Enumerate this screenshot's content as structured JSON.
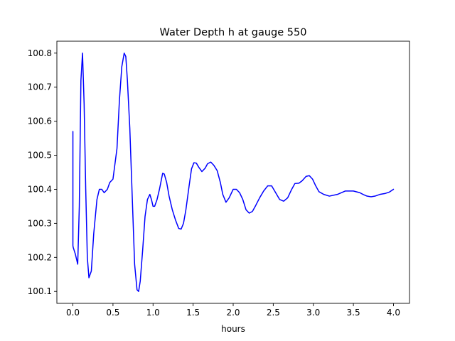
{
  "chart_data": {
    "type": "line",
    "title": "Water Depth h at gauge 550",
    "xlabel": "hours",
    "ylabel": "",
    "xlim": [
      -0.2,
      4.2
    ],
    "ylim": [
      100.065,
      100.835
    ],
    "xticks": [
      0.0,
      0.5,
      1.0,
      1.5,
      2.0,
      2.5,
      3.0,
      3.5,
      4.0
    ],
    "xtick_labels": [
      "0.0",
      "0.5",
      "1.0",
      "1.5",
      "2.0",
      "2.5",
      "3.0",
      "3.5",
      "4.0"
    ],
    "yticks": [
      100.1,
      100.2,
      100.3,
      100.4,
      100.5,
      100.6,
      100.7,
      100.8
    ],
    "ytick_labels": [
      "100.1",
      "100.2",
      "100.3",
      "100.4",
      "100.5",
      "100.6",
      "100.7",
      "100.8"
    ],
    "grid": false,
    "legend": "none",
    "series": [
      {
        "color": "#0000ff",
        "x": [
          0.0,
          0.0,
          0.003,
          0.03,
          0.06,
          0.08,
          0.1,
          0.12,
          0.14,
          0.16,
          0.18,
          0.2,
          0.23,
          0.26,
          0.3,
          0.33,
          0.36,
          0.39,
          0.43,
          0.46,
          0.5,
          0.55,
          0.58,
          0.61,
          0.64,
          0.66,
          0.68,
          0.71,
          0.74,
          0.77,
          0.8,
          0.82,
          0.84,
          0.87,
          0.9,
          0.93,
          0.96,
          0.98,
          1.0,
          1.02,
          1.05,
          1.08,
          1.12,
          1.14,
          1.17,
          1.2,
          1.24,
          1.28,
          1.32,
          1.35,
          1.38,
          1.41,
          1.45,
          1.48,
          1.51,
          1.54,
          1.57,
          1.61,
          1.65,
          1.68,
          1.72,
          1.76,
          1.8,
          1.84,
          1.87,
          1.91,
          1.95,
          2.0,
          2.04,
          2.08,
          2.12,
          2.16,
          2.2,
          2.24,
          2.28,
          2.33,
          2.38,
          2.43,
          2.48,
          2.53,
          2.58,
          2.63,
          2.68,
          2.73,
          2.77,
          2.82,
          2.86,
          2.91,
          2.95,
          2.99,
          3.03,
          3.07,
          3.13,
          3.2,
          3.3,
          3.4,
          3.5,
          3.58,
          3.62,
          3.67,
          3.72,
          3.77,
          3.83,
          3.9,
          3.95,
          4.0
        ],
        "y": [
          100.57,
          100.235,
          100.23,
          100.21,
          100.18,
          100.35,
          100.72,
          100.8,
          100.65,
          100.4,
          100.2,
          100.14,
          100.16,
          100.27,
          100.37,
          100.4,
          100.4,
          100.39,
          100.4,
          100.42,
          100.43,
          100.52,
          100.66,
          100.76,
          100.8,
          100.79,
          100.72,
          100.58,
          100.38,
          100.18,
          100.105,
          100.1,
          100.13,
          100.22,
          100.32,
          100.37,
          100.385,
          100.37,
          100.35,
          100.35,
          100.37,
          100.4,
          100.447,
          100.445,
          100.42,
          100.38,
          100.34,
          100.31,
          100.285,
          100.283,
          100.3,
          100.34,
          100.41,
          100.46,
          100.478,
          100.477,
          100.465,
          100.452,
          100.462,
          100.475,
          100.48,
          100.47,
          100.455,
          100.42,
          100.385,
          100.362,
          100.375,
          100.4,
          100.4,
          100.39,
          100.37,
          100.34,
          100.33,
          100.335,
          100.352,
          100.375,
          100.395,
          100.41,
          100.41,
          100.39,
          100.37,
          100.365,
          100.375,
          100.4,
          100.417,
          100.418,
          100.425,
          100.438,
          100.44,
          100.43,
          100.41,
          100.393,
          100.385,
          100.38,
          100.385,
          100.395,
          100.395,
          100.39,
          100.385,
          100.38,
          100.378,
          100.38,
          100.385,
          100.388,
          100.392,
          100.4
        ]
      }
    ]
  }
}
